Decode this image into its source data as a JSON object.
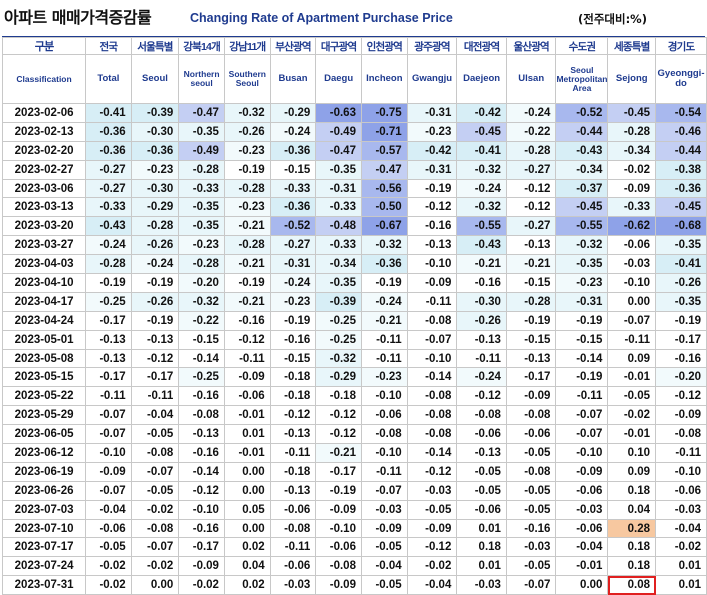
{
  "header": {
    "title_ko": "아파트 매매가격증감률",
    "title_en": "Changing Rate of Apartment Purchase Price",
    "unit": "(전주대비:%)"
  },
  "colors": {
    "accent": "#1f3b8f",
    "highlight_border": "#e02020",
    "positive_fill": "#f7c8a0"
  },
  "chart_data": {
    "type": "table",
    "title": "Changing Rate of Apartment Purchase Price",
    "corner": {
      "ko": "구분",
      "en": "Classification"
    },
    "columns": [
      {
        "ko": "전국",
        "en": "Total"
      },
      {
        "ko": "서울특별",
        "en": "Seoul"
      },
      {
        "ko": "강북14개",
        "en": "Northern seoul"
      },
      {
        "ko": "강남11개",
        "en": "Southern Seoul"
      },
      {
        "ko": "부산광역",
        "en": "Busan"
      },
      {
        "ko": "대구광역",
        "en": "Daegu"
      },
      {
        "ko": "인천광역",
        "en": "Incheon"
      },
      {
        "ko": "광주광역",
        "en": "Gwangju"
      },
      {
        "ko": "대전광역",
        "en": "Daejeon"
      },
      {
        "ko": "울산광역",
        "en": "Ulsan"
      },
      {
        "ko": "수도권",
        "en": "Seoul Metropolitan Area"
      },
      {
        "ko": "세종특별",
        "en": "Sejong"
      },
      {
        "ko": "경기도",
        "en": "Gyeonggi-do"
      }
    ],
    "rows": [
      {
        "date": "2023-02-06",
        "values": [
          -0.41,
          -0.39,
          -0.47,
          -0.32,
          -0.29,
          -0.63,
          -0.75,
          -0.31,
          -0.42,
          -0.24,
          -0.52,
          -0.45,
          -0.54
        ]
      },
      {
        "date": "2023-02-13",
        "values": [
          -0.36,
          -0.3,
          -0.35,
          -0.26,
          -0.24,
          -0.49,
          -0.71,
          -0.23,
          -0.45,
          -0.22,
          -0.44,
          -0.28,
          -0.46
        ]
      },
      {
        "date": "2023-02-20",
        "values": [
          -0.36,
          -0.36,
          -0.49,
          -0.23,
          -0.36,
          -0.47,
          -0.57,
          -0.42,
          -0.41,
          -0.28,
          -0.43,
          -0.34,
          -0.44
        ]
      },
      {
        "date": "2023-02-27",
        "values": [
          -0.27,
          -0.23,
          -0.28,
          -0.19,
          -0.15,
          -0.35,
          -0.47,
          -0.31,
          -0.32,
          -0.27,
          -0.34,
          -0.02,
          -0.38
        ]
      },
      {
        "date": "2023-03-06",
        "values": [
          -0.27,
          -0.3,
          -0.33,
          -0.28,
          -0.33,
          -0.31,
          -0.56,
          -0.19,
          -0.24,
          -0.12,
          -0.37,
          -0.09,
          -0.36
        ]
      },
      {
        "date": "2023-03-13",
        "values": [
          -0.33,
          -0.29,
          -0.35,
          -0.23,
          -0.36,
          -0.33,
          -0.5,
          -0.12,
          -0.32,
          -0.12,
          -0.45,
          -0.33,
          -0.45
        ]
      },
      {
        "date": "2023-03-20",
        "values": [
          -0.43,
          -0.28,
          -0.35,
          -0.21,
          -0.52,
          -0.48,
          -0.67,
          -0.16,
          -0.55,
          -0.27,
          -0.55,
          -0.62,
          -0.68
        ]
      },
      {
        "date": "2023-03-27",
        "values": [
          -0.24,
          -0.26,
          -0.23,
          -0.28,
          -0.27,
          -0.33,
          -0.32,
          -0.13,
          -0.43,
          -0.13,
          -0.32,
          -0.06,
          -0.35
        ]
      },
      {
        "date": "2023-04-03",
        "values": [
          -0.28,
          -0.24,
          -0.28,
          -0.21,
          -0.31,
          -0.34,
          -0.36,
          -0.1,
          -0.21,
          -0.21,
          -0.35,
          -0.03,
          -0.41
        ]
      },
      {
        "date": "2023-04-10",
        "values": [
          -0.19,
          -0.19,
          -0.2,
          -0.19,
          -0.24,
          -0.35,
          -0.19,
          -0.09,
          -0.16,
          -0.15,
          -0.23,
          -0.1,
          -0.26
        ]
      },
      {
        "date": "2023-04-17",
        "values": [
          -0.25,
          -0.26,
          -0.32,
          -0.21,
          -0.23,
          -0.39,
          -0.24,
          -0.11,
          -0.3,
          -0.28,
          -0.31,
          0.0,
          -0.35
        ]
      },
      {
        "date": "2023-04-24",
        "values": [
          -0.17,
          -0.19,
          -0.22,
          -0.16,
          -0.19,
          -0.25,
          -0.21,
          -0.08,
          -0.26,
          -0.19,
          -0.19,
          -0.07,
          -0.19
        ]
      },
      {
        "date": "2023-05-01",
        "values": [
          -0.13,
          -0.13,
          -0.15,
          -0.12,
          -0.16,
          -0.25,
          -0.11,
          -0.07,
          -0.13,
          -0.15,
          -0.15,
          -0.11,
          -0.17
        ]
      },
      {
        "date": "2023-05-08",
        "values": [
          -0.13,
          -0.12,
          -0.14,
          -0.11,
          -0.15,
          -0.32,
          -0.11,
          -0.1,
          -0.11,
          -0.13,
          -0.14,
          0.09,
          -0.16
        ]
      },
      {
        "date": "2023-05-15",
        "values": [
          -0.17,
          -0.17,
          -0.25,
          -0.09,
          -0.18,
          -0.29,
          -0.23,
          -0.14,
          -0.24,
          -0.17,
          -0.19,
          -0.01,
          -0.2
        ]
      },
      {
        "date": "2023-05-22",
        "values": [
          -0.11,
          -0.11,
          -0.16,
          -0.06,
          -0.18,
          -0.18,
          -0.1,
          -0.08,
          -0.12,
          -0.09,
          -0.11,
          -0.05,
          -0.12
        ]
      },
      {
        "date": "2023-05-29",
        "values": [
          -0.07,
          -0.04,
          -0.08,
          -0.01,
          -0.12,
          -0.12,
          -0.06,
          -0.08,
          -0.08,
          -0.08,
          -0.07,
          -0.02,
          -0.09
        ]
      },
      {
        "date": "2023-06-05",
        "values": [
          -0.07,
          -0.05,
          -0.13,
          0.01,
          -0.13,
          -0.12,
          -0.08,
          -0.08,
          -0.06,
          -0.06,
          -0.07,
          -0.01,
          -0.08
        ]
      },
      {
        "date": "2023-06-12",
        "values": [
          -0.1,
          -0.08,
          -0.16,
          -0.01,
          -0.11,
          -0.21,
          -0.1,
          -0.14,
          -0.13,
          -0.05,
          -0.1,
          0.1,
          -0.11
        ]
      },
      {
        "date": "2023-06-19",
        "values": [
          -0.09,
          -0.07,
          -0.14,
          0.0,
          -0.18,
          -0.17,
          -0.11,
          -0.12,
          -0.05,
          -0.08,
          -0.09,
          0.09,
          -0.1
        ]
      },
      {
        "date": "2023-06-26",
        "values": [
          -0.07,
          -0.05,
          -0.12,
          0.0,
          -0.13,
          -0.19,
          -0.07,
          -0.03,
          -0.05,
          -0.05,
          -0.06,
          0.18,
          -0.06
        ]
      },
      {
        "date": "2023-07-03",
        "values": [
          -0.04,
          -0.02,
          -0.1,
          0.05,
          -0.06,
          -0.09,
          -0.03,
          -0.05,
          -0.06,
          -0.05,
          -0.03,
          0.04,
          -0.03
        ]
      },
      {
        "date": "2023-07-10",
        "values": [
          -0.06,
          -0.08,
          -0.16,
          0.0,
          -0.08,
          -0.1,
          -0.09,
          -0.09,
          0.01,
          -0.16,
          -0.06,
          0.28,
          -0.04
        ]
      },
      {
        "date": "2023-07-17",
        "values": [
          -0.05,
          -0.07,
          -0.17,
          0.02,
          -0.11,
          -0.06,
          -0.05,
          -0.12,
          0.18,
          -0.03,
          -0.04,
          0.18,
          -0.02
        ]
      },
      {
        "date": "2023-07-24",
        "values": [
          -0.02,
          -0.02,
          -0.09,
          0.04,
          -0.06,
          -0.08,
          -0.04,
          -0.02,
          0.01,
          -0.05,
          -0.01,
          0.18,
          0.01
        ]
      },
      {
        "date": "2023-07-31",
        "values": [
          -0.02,
          0.0,
          -0.02,
          0.02,
          -0.03,
          -0.09,
          -0.05,
          -0.04,
          -0.03,
          -0.07,
          0.0,
          0.08,
          0.01
        ]
      }
    ],
    "highlight": {
      "row": 25,
      "col": 11
    }
  }
}
